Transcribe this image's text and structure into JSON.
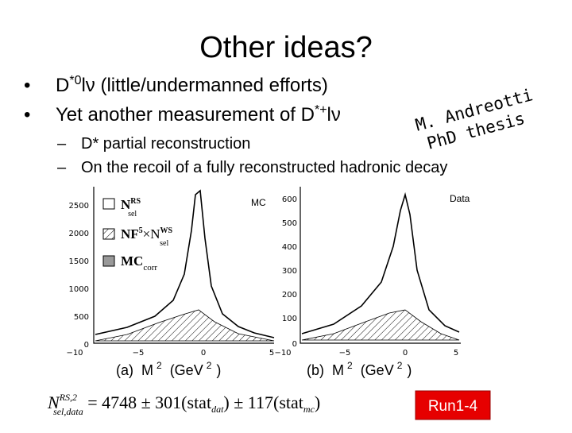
{
  "title": "Other ideas?",
  "bullets": [
    {
      "pre": "D",
      "sup": "*0",
      "post": "lν (little/undermanned efforts)"
    },
    {
      "pre": "Yet another measurement of D",
      "sup": "*+",
      "post": "lν"
    }
  ],
  "sub_bullets": [
    "D* partial reconstruction",
    "On the recoil of a fully reconstructed hadronic decay"
  ],
  "annotation": {
    "line1": "M. Andreotti",
    "line2": "PhD thesis"
  },
  "figure": {
    "left": {
      "label": "MC",
      "yticks": [
        "2500",
        "2000",
        "1500",
        "1000",
        "500",
        "0"
      ],
      "xticks": [
        "−10",
        "−5",
        "0",
        "5"
      ],
      "legend": [
        {
          "main": "N",
          "sup": "RS",
          "sub": "sel"
        },
        {
          "main": "NF",
          "sup": "5",
          "mid": "×N",
          "sup2": "WS",
          "sub": "sel"
        },
        {
          "main": "MC",
          "sub": "corr"
        }
      ],
      "caption": {
        "tag": "(a)",
        "var": "M",
        "sup": "2",
        "unit": "(GeV",
        "unit_sup": "2",
        "close": ")"
      }
    },
    "right": {
      "label": "Data",
      "yticks": [
        "600",
        "500",
        "400",
        "300",
        "200",
        "100",
        "0"
      ],
      "xticks": [
        "−10",
        "−5",
        "0",
        "5"
      ],
      "caption": {
        "tag": "(b)",
        "var": "M",
        "sup": "2",
        "unit": "(GeV",
        "unit_sup": "2",
        "close": ")"
      }
    }
  },
  "formula": {
    "main": "N",
    "sup": "RS,2",
    "sub": "sel,data",
    "rest1": " = 4748 ± 301(stat",
    "sub1": "dat",
    "rest2": ") ± 117(stat",
    "sub2": "mc",
    "rest3": ")"
  },
  "badge": "Run1-4"
}
